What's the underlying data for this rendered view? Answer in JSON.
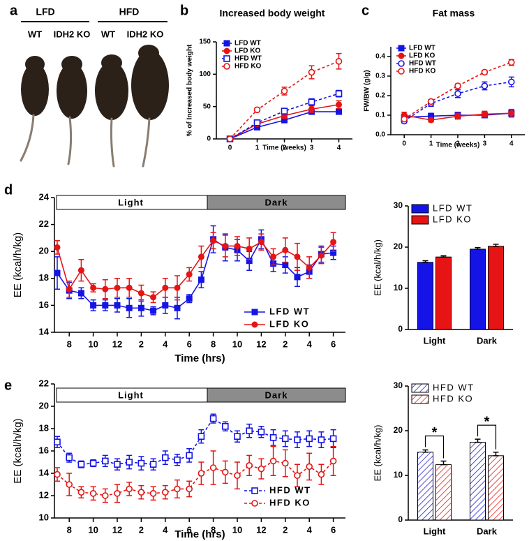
{
  "panel_a": {
    "panel": "a",
    "groups": [
      {
        "label": "LFD",
        "genotypes": [
          "WT",
          "IDH2 KO"
        ]
      },
      {
        "label": "HFD",
        "genotypes": [
          "WT",
          "IDH2 KO"
        ]
      }
    ]
  },
  "chart_data": [
    {
      "type": "line",
      "panel": "b",
      "title": "Increased body weight",
      "ylabel": "% of Increased body weight",
      "xlabel": "Time (weeks)",
      "x": [
        0,
        1,
        2,
        3,
        4
      ],
      "xlim": [
        -0.5,
        4.5
      ],
      "xticks": [
        0,
        1,
        2,
        3,
        4
      ],
      "ylim": [
        0,
        150
      ],
      "yticks": [
        0,
        50,
        100,
        150
      ],
      "legend": "upper left",
      "series": [
        {
          "name": "LFD WT",
          "color": "#1414e6",
          "marker": "square",
          "fill": "solid",
          "line": "solid",
          "values": [
            0,
            18,
            29,
            42,
            42
          ],
          "errors": [
            0,
            3,
            3,
            4,
            4
          ]
        },
        {
          "name": "LFD KO",
          "color": "#e61414",
          "marker": "circle",
          "fill": "solid",
          "line": "solid",
          "values": [
            0,
            23,
            36,
            46,
            53
          ],
          "errors": [
            0,
            3,
            4,
            5,
            6
          ]
        },
        {
          "name": "HFD WT",
          "color": "#1414e6",
          "marker": "square",
          "fill": "open",
          "line": "dashed",
          "values": [
            0,
            25,
            43,
            57,
            70
          ],
          "errors": [
            0,
            3,
            4,
            5,
            5
          ]
        },
        {
          "name": "HFD KO",
          "color": "#e61414",
          "marker": "circle",
          "fill": "open",
          "line": "dashed",
          "values": [
            0,
            45,
            74,
            103,
            120
          ],
          "errors": [
            0,
            3,
            6,
            10,
            12
          ]
        }
      ]
    },
    {
      "type": "line",
      "panel": "c",
      "title": "Fat mass",
      "ylabel": "FW/BW (g/g)",
      "xlabel": "Time (weeks)",
      "x": [
        0,
        1,
        2,
        3,
        4
      ],
      "xlim": [
        -0.5,
        4.5
      ],
      "xticks": [
        0,
        1,
        2,
        3,
        4
      ],
      "ylim": [
        0,
        0.45
      ],
      "yticks": [
        {
          "value": 0,
          "label": "0.0"
        },
        0.1,
        0.2,
        0.3,
        0.4
      ],
      "legend": "upper left",
      "series": [
        {
          "name": "LFD WT",
          "color": "#1414e6",
          "marker": "square",
          "fill": "solid",
          "line": "solid",
          "values": [
            0.09,
            0.095,
            0.1,
            0.1,
            0.11
          ],
          "errors": [
            0.015,
            0.015,
            0.015,
            0.01,
            0.015
          ]
        },
        {
          "name": "LFD KO",
          "color": "#e61414",
          "marker": "circle",
          "fill": "solid",
          "line": "solid",
          "values": [
            0.1,
            0.075,
            0.095,
            0.105,
            0.11
          ],
          "errors": [
            0.015,
            0.01,
            0.015,
            0.015,
            0.02
          ]
        },
        {
          "name": "HFD WT",
          "color": "#1414e6",
          "marker": "circle",
          "fill": "open",
          "line": "dashed",
          "values": [
            0.07,
            0.16,
            0.21,
            0.25,
            0.27
          ],
          "errors": [
            0.01,
            0.015,
            0.02,
            0.02,
            0.025
          ]
        },
        {
          "name": "HFD KO",
          "color": "#e61414",
          "marker": "circle",
          "fill": "open",
          "line": "dashed",
          "values": [
            0.08,
            0.17,
            0.25,
            0.32,
            0.37
          ],
          "errors": [
            0.01,
            0.01,
            0.01,
            0.01,
            0.015
          ]
        }
      ]
    },
    {
      "type": "line",
      "panel": "d",
      "ylabel": "EE (kcal/h/kg)",
      "xlabel": "Time (hrs)",
      "periods": [
        "Light",
        "Dark"
      ],
      "categories": [
        null,
        "8",
        null,
        "10",
        null,
        "12",
        null,
        "2",
        null,
        "4",
        null,
        "6",
        null,
        "8",
        null,
        "10",
        null,
        "12",
        null,
        "2",
        null,
        "4",
        null,
        "6"
      ],
      "ylim": [
        14,
        24
      ],
      "yticks": [
        14,
        16,
        18,
        20,
        22,
        24
      ],
      "legend": "lower center",
      "series": [
        {
          "name": "LFD WT",
          "color": "#1414e6",
          "marker": "square",
          "fill": "solid",
          "line": "solid",
          "values": [
            18.4,
            17.1,
            16.9,
            16.0,
            16.0,
            16.0,
            15.8,
            15.8,
            15.6,
            16.0,
            15.8,
            16.5,
            17.9,
            20.9,
            20.3,
            20.1,
            19.3,
            20.9,
            19.1,
            19.0,
            18.1,
            18.5,
            19.8,
            19.9
          ],
          "errors": [
            1.2,
            0.6,
            0.4,
            0.4,
            0.4,
            0.5,
            0.7,
            0.6,
            0.3,
            0.6,
            0.8,
            0.3,
            0.6,
            1.0,
            1.0,
            0.8,
            0.7,
            0.7,
            0.6,
            0.6,
            0.7,
            0.5,
            0.6,
            0.5
          ]
        },
        {
          "name": "LFD KO",
          "color": "#e61414",
          "marker": "circle",
          "fill": "solid",
          "line": "solid",
          "values": [
            20.3,
            17.2,
            18.6,
            17.3,
            17.2,
            17.3,
            17.3,
            16.9,
            16.6,
            17.3,
            17.3,
            18.3,
            19.6,
            20.8,
            20.4,
            20.4,
            20.2,
            20.7,
            19.6,
            20.1,
            19.6,
            18.8,
            19.7,
            20.7
          ],
          "errors": [
            0.5,
            0.6,
            0.8,
            0.3,
            0.7,
            0.7,
            0.7,
            0.6,
            0.4,
            0.7,
            0.9,
            0.5,
            0.8,
            0.6,
            0.8,
            0.7,
            0.8,
            0.6,
            0.6,
            0.9,
            1.0,
            0.8,
            0.6,
            0.7
          ]
        }
      ]
    },
    {
      "type": "bar",
      "ylabel": "EE (kcal/h/kg)",
      "categories": [
        "Light",
        "Dark"
      ],
      "ylim": [
        0,
        30
      ],
      "yticks": [
        0,
        10,
        20,
        30
      ],
      "legend": "upper left",
      "series": [
        {
          "name": "LFD WT",
          "color": "#1414e6",
          "hatch": false,
          "values": [
            16.3,
            19.5
          ],
          "errors": [
            0.4,
            0.4
          ]
        },
        {
          "name": "LFD KO",
          "color": "#e61414",
          "hatch": false,
          "values": [
            17.6,
            20.2
          ],
          "errors": [
            0.3,
            0.5
          ]
        }
      ]
    },
    {
      "type": "line",
      "panel": "e",
      "ylabel": "EE (kcal/h/kg)",
      "xlabel": "Time (hrs)",
      "periods": [
        "Light",
        "Dark"
      ],
      "categories": [
        null,
        "8",
        null,
        "10",
        null,
        "12",
        null,
        "2",
        null,
        "4",
        null,
        "6",
        null,
        "8",
        null,
        "10",
        null,
        "12",
        null,
        "2",
        null,
        "4",
        null,
        "6"
      ],
      "ylim": [
        10,
        22
      ],
      "yticks": [
        10,
        12,
        14,
        16,
        18,
        20,
        22
      ],
      "legend": "lower center",
      "series": [
        {
          "name": "HFD WT",
          "color": "#1414e6",
          "marker": "square",
          "fill": "open",
          "line": "dashed",
          "values": [
            16.8,
            15.4,
            14.8,
            14.9,
            15.1,
            14.8,
            15.0,
            14.9,
            14.8,
            15.4,
            15.2,
            15.6,
            17.3,
            18.9,
            18.2,
            17.3,
            17.8,
            17.7,
            17.2,
            17.1,
            17.0,
            17.1,
            17.0,
            17.1
          ],
          "errors": [
            0.5,
            0.4,
            0.3,
            0.3,
            0.5,
            0.5,
            0.6,
            0.6,
            0.5,
            0.6,
            0.5,
            0.6,
            0.6,
            0.4,
            0.4,
            0.5,
            0.6,
            0.5,
            0.7,
            0.7,
            0.7,
            0.7,
            0.7,
            0.8
          ]
        },
        {
          "name": "HFD KO",
          "color": "#e61414",
          "marker": "circle",
          "fill": "open",
          "line": "dashed",
          "values": [
            13.9,
            13.0,
            12.3,
            12.2,
            12.0,
            12.2,
            12.6,
            12.3,
            12.2,
            12.3,
            12.6,
            12.6,
            14.0,
            14.5,
            14.1,
            13.8,
            14.7,
            14.4,
            15.1,
            14.9,
            13.8,
            14.6,
            13.9,
            15.1
          ],
          "errors": [
            0.6,
            1.0,
            0.5,
            0.6,
            0.6,
            0.8,
            0.6,
            0.6,
            0.6,
            0.6,
            0.8,
            0.7,
            1.0,
            1.5,
            1.0,
            1.2,
            0.9,
            0.9,
            1.3,
            1.2,
            1.0,
            1.2,
            0.9,
            1.3
          ]
        }
      ]
    },
    {
      "type": "bar",
      "ylabel": "EE (kcal/h/kg)",
      "categories": [
        "Light",
        "Dark"
      ],
      "ylim": [
        0,
        30
      ],
      "yticks": [
        0,
        10,
        20,
        30
      ],
      "legend": "upper left",
      "annotations": [
        "*",
        "*"
      ],
      "series": [
        {
          "name": "HFD WT",
          "color": "#1414e6",
          "hatch": true,
          "values": [
            15.2,
            17.4
          ],
          "errors": [
            0.5,
            0.7
          ]
        },
        {
          "name": "HFD KO",
          "color": "#e61414",
          "hatch": true,
          "values": [
            12.4,
            14.4
          ],
          "errors": [
            0.8,
            0.8
          ]
        }
      ]
    }
  ]
}
